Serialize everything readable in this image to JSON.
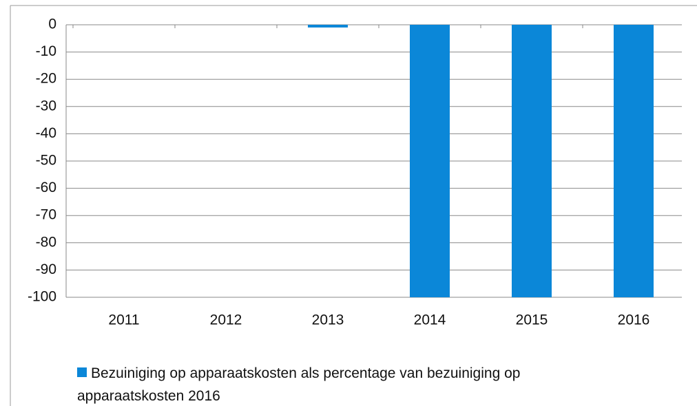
{
  "chart_data": {
    "type": "bar",
    "categories": [
      "2011",
      "2012",
      "2013",
      "2014",
      "2015",
      "2016"
    ],
    "series": [
      {
        "name": "Bezuiniging op apparaatskosten als percentage van bezuiniging op apparaatskosten 2016",
        "color": "#0b87d8",
        "values": [
          0,
          0,
          -1,
          -100,
          -100,
          -100
        ]
      }
    ],
    "ylim": [
      -100,
      0
    ],
    "yticks": [
      0,
      -10,
      -20,
      -30,
      -40,
      -50,
      -60,
      -70,
      -80,
      -90,
      -100
    ],
    "grid": true,
    "legend": "bottom"
  }
}
